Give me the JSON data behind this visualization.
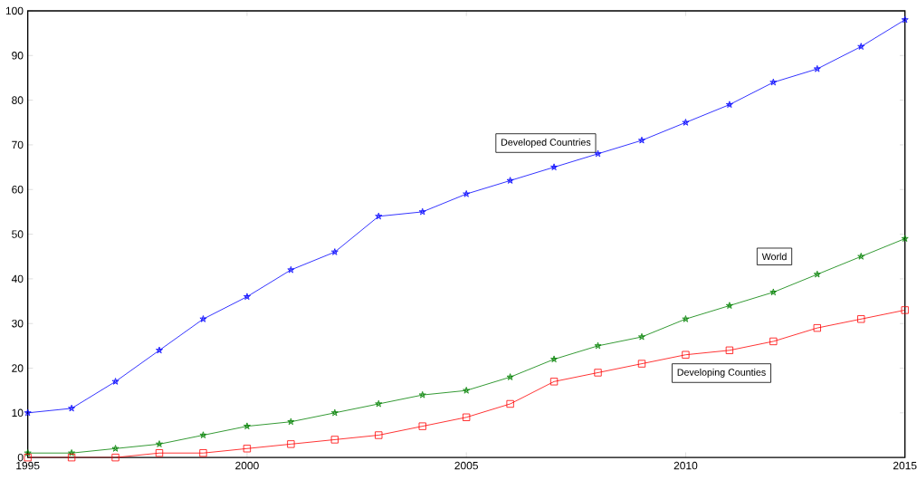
{
  "chart_data": {
    "type": "line",
    "x": [
      1995,
      1996,
      1997,
      1998,
      1999,
      2000,
      2001,
      2002,
      2003,
      2004,
      2005,
      2006,
      2007,
      2008,
      2009,
      2010,
      2011,
      2012,
      2013,
      2014,
      2015
    ],
    "series": [
      {
        "name": "Developed Countries",
        "color": "#0000ff",
        "marker": "star",
        "values": [
          10,
          11,
          17,
          24,
          31,
          36,
          42,
          46,
          54,
          55,
          59,
          62,
          65,
          68,
          71,
          75,
          79,
          84,
          87,
          92,
          98
        ]
      },
      {
        "name": "World",
        "color": "#008000",
        "marker": "star",
        "values": [
          1,
          1,
          2,
          3,
          5,
          7,
          8,
          10,
          12,
          14,
          15,
          18,
          22,
          25,
          27,
          31,
          34,
          37,
          41,
          45,
          49
        ]
      },
      {
        "name": "Developing Counties",
        "color": "#ff0000",
        "marker": "square",
        "values": [
          0,
          0,
          0,
          1,
          1,
          2,
          3,
          4,
          5,
          7,
          9,
          12,
          17,
          19,
          21,
          23,
          24,
          26,
          29,
          31,
          33
        ]
      }
    ],
    "xlim": [
      1995,
      2015
    ],
    "ylim": [
      0,
      100
    ],
    "xticks": [
      1995,
      2000,
      2005,
      2010,
      2015
    ],
    "yticks": [
      0,
      10,
      20,
      30,
      40,
      50,
      60,
      70,
      80,
      90,
      100
    ],
    "grid": false
  }
}
